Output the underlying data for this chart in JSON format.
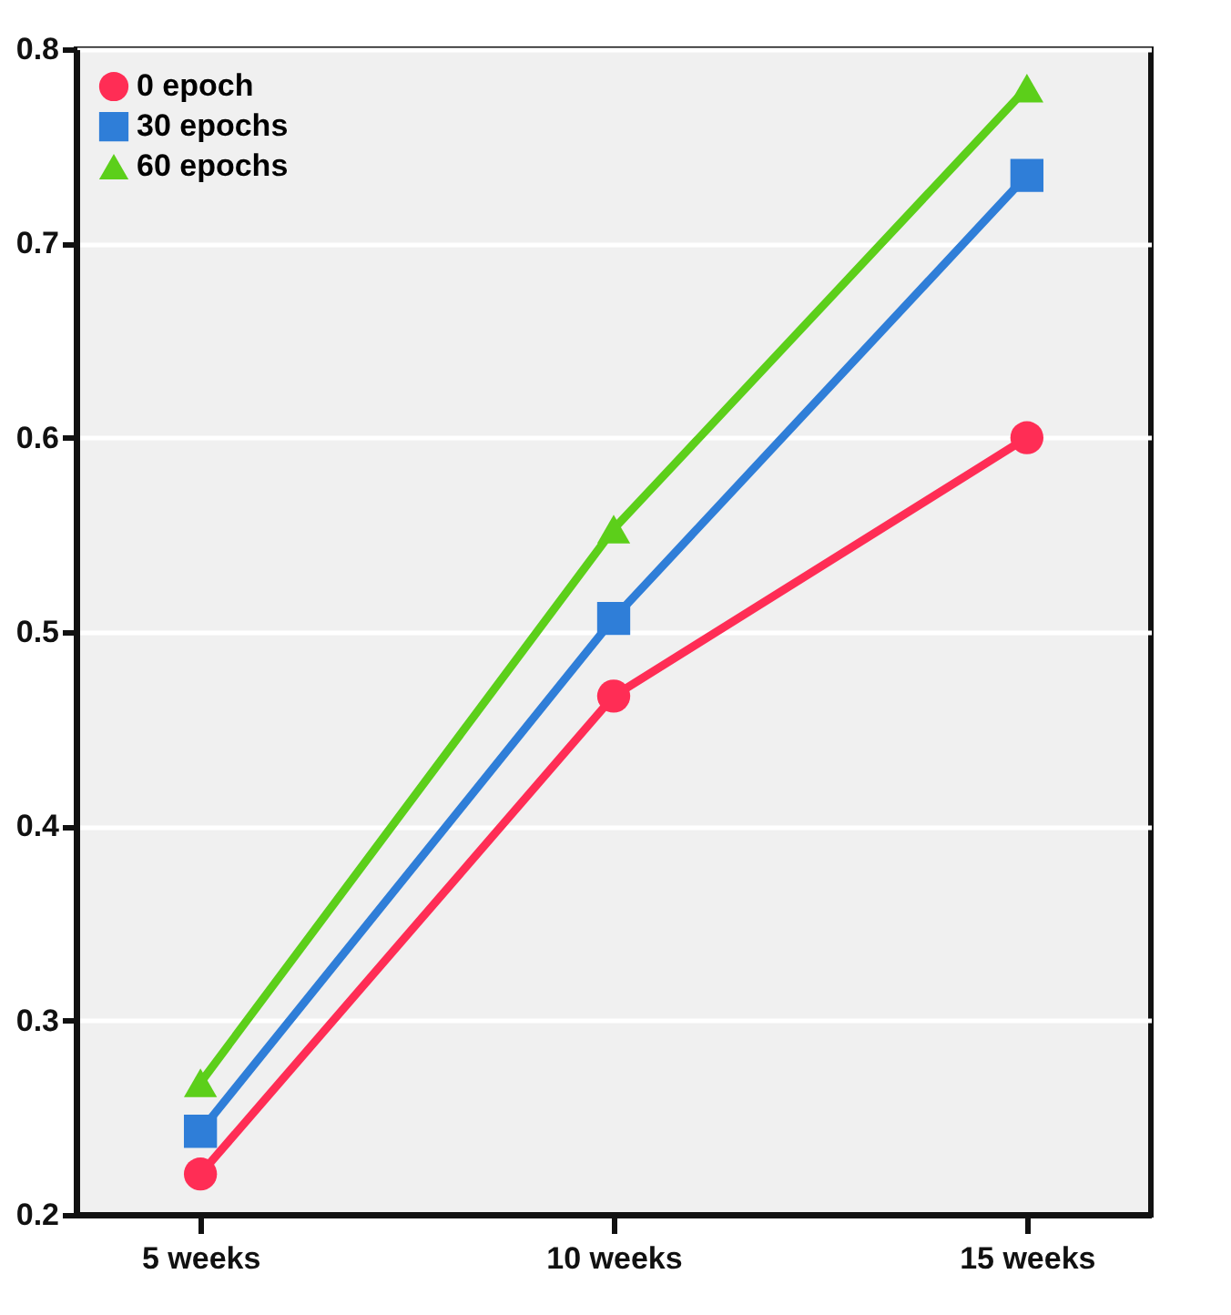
{
  "chart_data": {
    "type": "line",
    "categories": [
      "5 weeks",
      "10 weeks",
      "15 weeks"
    ],
    "series": [
      {
        "name": "0 epoch",
        "color": "#ff2d55",
        "marker": "circle",
        "values": [
          0.221,
          0.467,
          0.6
        ]
      },
      {
        "name": "30 epochs",
        "color": "#2f7ed8",
        "marker": "square",
        "values": [
          0.243,
          0.507,
          0.735
        ]
      },
      {
        "name": "60 epochs",
        "color": "#5ccf1a",
        "marker": "triangle",
        "values": [
          0.268,
          0.553,
          0.78
        ]
      }
    ],
    "ylim": [
      0.2,
      0.8
    ],
    "yticks": [
      0.2,
      0.3,
      0.4,
      0.5,
      0.6,
      0.7,
      0.8
    ],
    "grid": "y",
    "legend": "top left",
    "line_style": "solid"
  }
}
